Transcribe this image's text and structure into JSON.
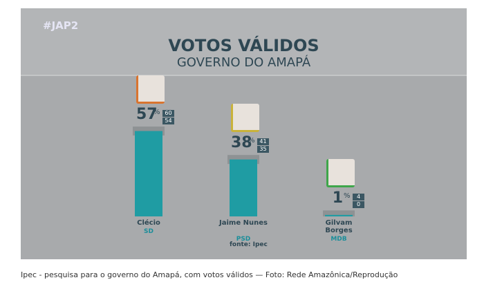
{
  "chart_data": {
    "type": "bar",
    "hashtag": "#JAP2",
    "title": "VOTOS VÁLIDOS",
    "subtitle": "GOVERNO DO AMAPÁ",
    "categories": [
      "Clécio",
      "Jaime Nunes",
      "Gilvam Borges"
    ],
    "parties": [
      "SD",
      "PSD",
      "MDB"
    ],
    "values": [
      57,
      38,
      1
    ],
    "unit_label": "%",
    "upper": [
      60,
      41,
      4
    ],
    "lower": [
      54,
      35,
      0
    ],
    "color": "#1f9ca3",
    "range_color": "#8e9294",
    "ylim": [
      0,
      60
    ],
    "source": "fonte: Ipec"
  },
  "caption": "Ipec - pesquisa para o governo do Amapá, com votos válidos — Foto: Rede Amazônica/Reprodução"
}
